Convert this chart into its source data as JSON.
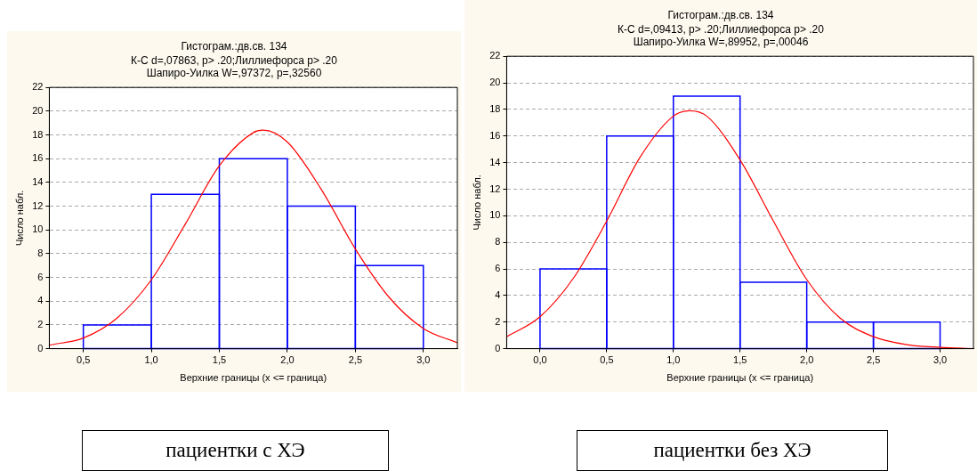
{
  "chart_data": [
    {
      "type": "histogram",
      "title": "Гистограм.:дв.св. 134",
      "subtitle": "К-С d=,07863, p> .20;Лиллиефорса p> .20\nШапиро-Уилка W=,97372, p=,32560",
      "xlabel": "Верхние границы (x <= граница)",
      "ylabel": "Число набл.",
      "annotations": [
        "пациентки с ХЭ"
      ],
      "bins": [
        0.5,
        1.0,
        1.5,
        2.0,
        2.5,
        3.0
      ],
      "values": [
        2,
        13,
        16,
        12,
        7
      ],
      "color": "#0000ff",
      "series": [
        {
          "type": "line",
          "color": "#ff0000",
          "x": [
            0.25,
            0.5,
            0.75,
            1.0,
            1.25,
            1.5,
            1.75,
            1.82,
            2.0,
            2.25,
            2.5,
            2.75,
            3.0,
            3.25
          ],
          "values": [
            0.3,
            0.9,
            2.6,
            5.8,
            10.5,
            15.4,
            18.2,
            18.4,
            17.4,
            13.4,
            8.4,
            4.3,
            1.7,
            0.5
          ]
        }
      ],
      "xlim": [
        0.25,
        3.25
      ],
      "xticks": [
        {
          "value": 0.5,
          "label": "0,5"
        },
        {
          "value": 1.0,
          "label": "1,0"
        },
        {
          "value": 1.5,
          "label": "1,5"
        },
        {
          "value": 2.0,
          "label": "2,0"
        },
        {
          "value": 2.5,
          "label": "2,5"
        },
        {
          "value": 3.0,
          "label": "3,0"
        }
      ],
      "ylim": [
        0,
        22
      ],
      "yticks": [
        0,
        2,
        4,
        6,
        8,
        10,
        12,
        14,
        16,
        18,
        20,
        22
      ],
      "grid": "y",
      "marker": "none"
    },
    {
      "type": "histogram",
      "title": "Гистограм.:дв.св. 134",
      "subtitle": "К-С d=,09413, p> .20;Лиллиефорса p> .20\nШапиро-Уилка W=,89952, p=,00046",
      "xlabel": "Верхние границы (x <= граница)",
      "ylabel": "Число набл.",
      "annotations": [
        "пациентки без ХЭ"
      ],
      "bins": [
        0.0,
        0.5,
        1.0,
        1.5,
        2.0,
        2.5,
        3.0
      ],
      "values": [
        6,
        16,
        19,
        5,
        2,
        2
      ],
      "color": "#0000ff",
      "series": [
        {
          "type": "line",
          "color": "#ff0000",
          "x": [
            -0.25,
            0.0,
            0.25,
            0.5,
            0.75,
            1.0,
            1.12,
            1.25,
            1.5,
            1.75,
            2.0,
            2.25,
            2.5,
            2.75,
            3.0,
            3.25
          ],
          "values": [
            0.9,
            2.4,
            5.3,
            9.6,
            14.4,
            17.5,
            17.9,
            17.5,
            14.2,
            9.6,
            5.2,
            2.3,
            0.9,
            0.3,
            0.1,
            0.0
          ]
        }
      ],
      "xlim": [
        -0.25,
        3.25
      ],
      "xticks": [
        {
          "value": 0.0,
          "label": "0,0"
        },
        {
          "value": 0.5,
          "label": "0,5"
        },
        {
          "value": 1.0,
          "label": "1,0"
        },
        {
          "value": 1.5,
          "label": "1,5"
        },
        {
          "value": 2.0,
          "label": "2,0"
        },
        {
          "value": 2.5,
          "label": "2,5"
        },
        {
          "value": 3.0,
          "label": "3,0"
        }
      ],
      "ylim": [
        0,
        22
      ],
      "yticks": [
        0,
        2,
        4,
        6,
        8,
        10,
        12,
        14,
        16,
        18,
        20,
        22
      ],
      "grid": "y",
      "marker": "none"
    }
  ]
}
